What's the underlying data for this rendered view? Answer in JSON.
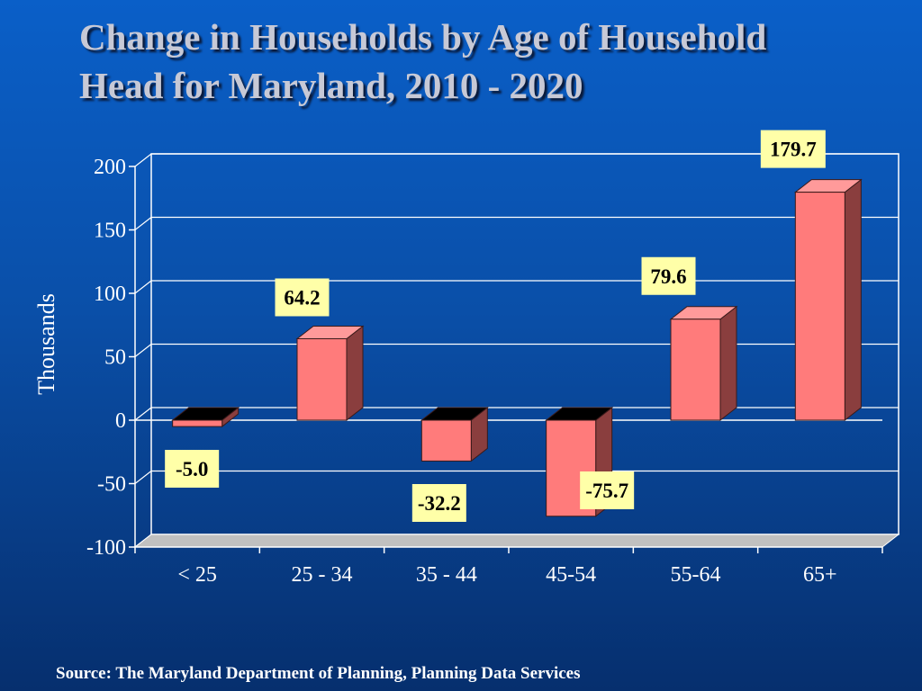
{
  "title": {
    "line1": "Change in Households by Age of Household",
    "line2": "Head for Maryland, 2010 - 2020"
  },
  "source": "Source: The Maryland Department of Planning, Planning Data Services",
  "chart_data": {
    "type": "bar",
    "categories": [
      "< 25",
      "25 - 34",
      "35 - 44",
      "45-54",
      "55-64",
      "65+"
    ],
    "values": [
      -5.0,
      64.2,
      -32.2,
      -75.7,
      79.6,
      179.7
    ],
    "data_labels": [
      "-5.0",
      "64.2",
      "-32.2",
      "-75.7",
      "79.6",
      "179.7"
    ],
    "ylabel": "Thousands",
    "ylim": [
      -100,
      200
    ],
    "yticks": [
      200,
      150,
      100,
      50,
      0,
      -50,
      -100
    ],
    "grid": true,
    "style": "3d-columns",
    "colors": {
      "bar_front": "#ff7b7b",
      "bar_side": "#8a3e3e",
      "bar_top": "#ff9a9a",
      "label_box": "#ffffa8",
      "plot_wall": "#ffffff",
      "floor": "#c0c0c0"
    }
  }
}
